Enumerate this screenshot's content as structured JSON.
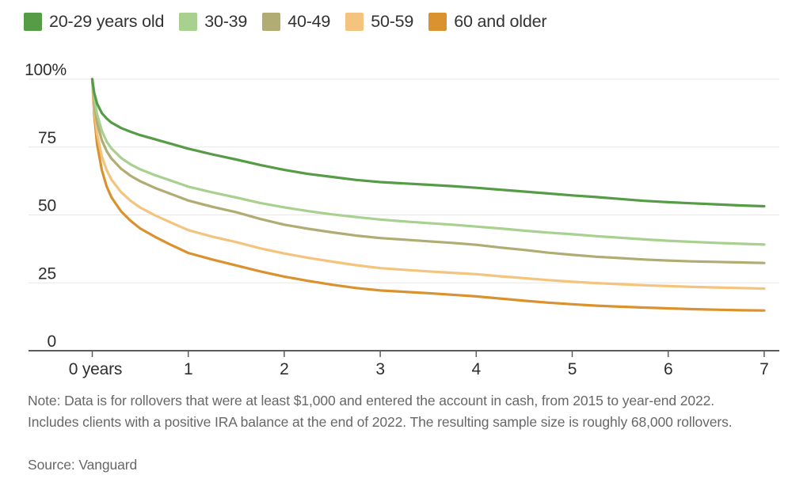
{
  "chart_data": {
    "type": "line",
    "title": "",
    "xlabel": "",
    "ylabel": "",
    "x_unit": "years",
    "x_range": [
      0,
      7
    ],
    "y_range": [
      0,
      100
    ],
    "grid": "horizontal",
    "legend_position": "top-left",
    "yticks": [
      {
        "value": 100,
        "label": "100%"
      },
      {
        "value": 75,
        "label": "75"
      },
      {
        "value": 50,
        "label": "50"
      },
      {
        "value": 25,
        "label": "25"
      },
      {
        "value": 0,
        "label": "0"
      }
    ],
    "xticks": [
      {
        "value": 0,
        "label": "0 years"
      },
      {
        "value": 1,
        "label": "1"
      },
      {
        "value": 2,
        "label": "2"
      },
      {
        "value": 3,
        "label": "3"
      },
      {
        "value": 4,
        "label": "4"
      },
      {
        "value": 5,
        "label": "5"
      },
      {
        "value": 6,
        "label": "6"
      },
      {
        "value": 7,
        "label": "7"
      }
    ],
    "series": [
      {
        "name": "20-29 years old",
        "color": "#569c47",
        "points": [
          [
            0,
            100
          ],
          [
            0.02,
            95
          ],
          [
            0.05,
            91
          ],
          [
            0.1,
            87.5
          ],
          [
            0.15,
            85.5
          ],
          [
            0.2,
            84
          ],
          [
            0.3,
            82
          ],
          [
            0.4,
            80.6
          ],
          [
            0.5,
            79.4
          ],
          [
            0.65,
            77.9
          ],
          [
            0.8,
            76.4
          ],
          [
            1,
            74.4
          ],
          [
            1.25,
            72.3
          ],
          [
            1.5,
            70.4
          ],
          [
            1.75,
            68.4
          ],
          [
            2,
            66.6
          ],
          [
            2.25,
            65.1
          ],
          [
            2.5,
            64
          ],
          [
            2.75,
            62.9
          ],
          [
            3,
            62.1
          ],
          [
            3.25,
            61.6
          ],
          [
            3.5,
            61.1
          ],
          [
            3.75,
            60.6
          ],
          [
            4,
            60
          ],
          [
            4.25,
            59.3
          ],
          [
            4.5,
            58.6
          ],
          [
            4.75,
            57.9
          ],
          [
            5,
            57.2
          ],
          [
            5.25,
            56.6
          ],
          [
            5.5,
            55.9
          ],
          [
            5.75,
            55.2
          ],
          [
            6,
            54.7
          ],
          [
            6.25,
            54.3
          ],
          [
            6.5,
            53.9
          ],
          [
            6.75,
            53.5
          ],
          [
            7,
            53.2
          ]
        ]
      },
      {
        "name": "30-39",
        "color": "#a8d08f",
        "points": [
          [
            0,
            100
          ],
          [
            0.02,
            93
          ],
          [
            0.05,
            87
          ],
          [
            0.1,
            81
          ],
          [
            0.15,
            77
          ],
          [
            0.2,
            74.5
          ],
          [
            0.3,
            71
          ],
          [
            0.4,
            68.6
          ],
          [
            0.5,
            66.8
          ],
          [
            0.65,
            64.7
          ],
          [
            0.8,
            62.9
          ],
          [
            1,
            60.4
          ],
          [
            1.25,
            58.3
          ],
          [
            1.5,
            56.4
          ],
          [
            1.75,
            54.4
          ],
          [
            2,
            52.8
          ],
          [
            2.25,
            51.4
          ],
          [
            2.5,
            50.2
          ],
          [
            2.75,
            49.2
          ],
          [
            3,
            48.3
          ],
          [
            3.25,
            47.6
          ],
          [
            3.5,
            47
          ],
          [
            3.75,
            46.4
          ],
          [
            4,
            45.7
          ],
          [
            4.25,
            45
          ],
          [
            4.5,
            44.2
          ],
          [
            4.75,
            43.5
          ],
          [
            5,
            42.9
          ],
          [
            5.25,
            42.2
          ],
          [
            5.5,
            41.6
          ],
          [
            5.75,
            41
          ],
          [
            6,
            40.5
          ],
          [
            6.25,
            40.1
          ],
          [
            6.5,
            39.7
          ],
          [
            6.75,
            39.4
          ],
          [
            7,
            39.1
          ]
        ]
      },
      {
        "name": "40-49",
        "color": "#b0ac74",
        "points": [
          [
            0,
            100
          ],
          [
            0.02,
            91
          ],
          [
            0.05,
            84
          ],
          [
            0.1,
            77.5
          ],
          [
            0.15,
            73.5
          ],
          [
            0.2,
            70.8
          ],
          [
            0.3,
            67
          ],
          [
            0.4,
            64.4
          ],
          [
            0.5,
            62.4
          ],
          [
            0.65,
            60
          ],
          [
            0.8,
            58
          ],
          [
            1,
            55.3
          ],
          [
            1.25,
            53
          ],
          [
            1.5,
            51
          ],
          [
            1.75,
            48.5
          ],
          [
            2,
            46.4
          ],
          [
            2.25,
            44.9
          ],
          [
            2.5,
            43.6
          ],
          [
            2.75,
            42.4
          ],
          [
            3,
            41.5
          ],
          [
            3.25,
            40.9
          ],
          [
            3.5,
            40.3
          ],
          [
            3.75,
            39.7
          ],
          [
            4,
            39
          ],
          [
            4.25,
            38
          ],
          [
            4.5,
            37.1
          ],
          [
            4.75,
            36.1
          ],
          [
            5,
            35.3
          ],
          [
            5.25,
            34.6
          ],
          [
            5.5,
            34.1
          ],
          [
            5.75,
            33.6
          ],
          [
            6,
            33.2
          ],
          [
            6.25,
            32.9
          ],
          [
            6.5,
            32.7
          ],
          [
            6.75,
            32.5
          ],
          [
            7,
            32.3
          ]
        ]
      },
      {
        "name": "50-59",
        "color": "#f4c47e",
        "points": [
          [
            0,
            100
          ],
          [
            0.02,
            89
          ],
          [
            0.05,
            80
          ],
          [
            0.1,
            71.5
          ],
          [
            0.15,
            66.5
          ],
          [
            0.2,
            63
          ],
          [
            0.3,
            58.4
          ],
          [
            0.4,
            55.2
          ],
          [
            0.5,
            52.7
          ],
          [
            0.65,
            49.9
          ],
          [
            0.8,
            47.5
          ],
          [
            1,
            44.4
          ],
          [
            1.25,
            42
          ],
          [
            1.5,
            40
          ],
          [
            1.75,
            37.7
          ],
          [
            2,
            35.8
          ],
          [
            2.25,
            34.2
          ],
          [
            2.5,
            32.8
          ],
          [
            2.75,
            31.5
          ],
          [
            3,
            30.4
          ],
          [
            3.25,
            29.8
          ],
          [
            3.5,
            29.2
          ],
          [
            3.75,
            28.7
          ],
          [
            4,
            28.2
          ],
          [
            4.25,
            27.4
          ],
          [
            4.5,
            26.7
          ],
          [
            4.75,
            26
          ],
          [
            5,
            25.4
          ],
          [
            5.25,
            24.9
          ],
          [
            5.5,
            24.5
          ],
          [
            5.75,
            24.1
          ],
          [
            6,
            23.8
          ],
          [
            6.25,
            23.5
          ],
          [
            6.5,
            23.3
          ],
          [
            6.75,
            23.1
          ],
          [
            7,
            22.9
          ]
        ]
      },
      {
        "name": "60 and older",
        "color": "#d9922f",
        "points": [
          [
            0,
            100
          ],
          [
            0.02,
            87
          ],
          [
            0.05,
            76
          ],
          [
            0.1,
            66.5
          ],
          [
            0.15,
            60.5
          ],
          [
            0.2,
            56.5
          ],
          [
            0.3,
            51.3
          ],
          [
            0.4,
            47.8
          ],
          [
            0.5,
            45
          ],
          [
            0.65,
            42
          ],
          [
            0.8,
            39.3
          ],
          [
            1,
            36
          ],
          [
            1.25,
            33.6
          ],
          [
            1.5,
            31.4
          ],
          [
            1.75,
            29.2
          ],
          [
            2,
            27.3
          ],
          [
            2.25,
            25.7
          ],
          [
            2.5,
            24.3
          ],
          [
            2.75,
            23.1
          ],
          [
            3,
            22.2
          ],
          [
            3.25,
            21.7
          ],
          [
            3.5,
            21.2
          ],
          [
            3.75,
            20.6
          ],
          [
            4,
            20
          ],
          [
            4.25,
            19.2
          ],
          [
            4.5,
            18.4
          ],
          [
            4.75,
            17.7
          ],
          [
            5,
            17.1
          ],
          [
            5.25,
            16.6
          ],
          [
            5.5,
            16.2
          ],
          [
            5.75,
            15.9
          ],
          [
            6,
            15.6
          ],
          [
            6.25,
            15.3
          ],
          [
            6.5,
            15.1
          ],
          [
            6.75,
            14.9
          ],
          [
            7,
            14.8
          ]
        ]
      }
    ],
    "colors": {
      "grid": "#e7e7e7",
      "axis": "#5c5c5c",
      "axis_text": "#2e2e2e",
      "note_text": "#666769"
    }
  },
  "note": "Note: Data is for rollovers that were at least $1,000 and entered the account in cash, from 2015 to year-end 2022. Includes clients with a positive IRA balance at the end of 2022. The resulting sample size is roughly 68,000 rollovers.",
  "source": "Source: Vanguard"
}
